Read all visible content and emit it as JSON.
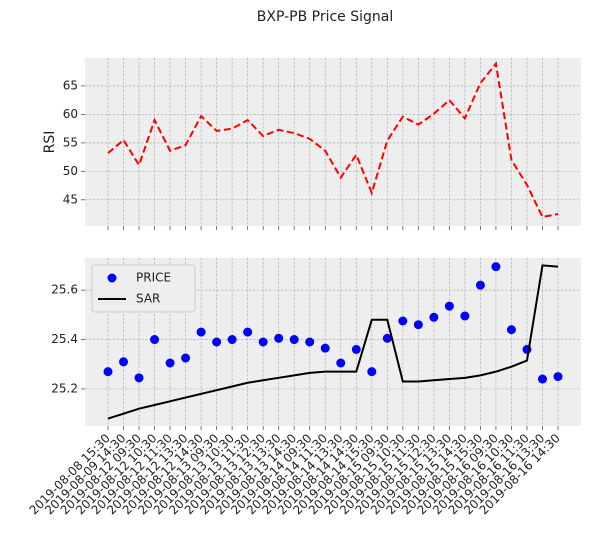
{
  "chart_data": [
    {
      "type": "line",
      "title": "BXP-PB Price Signal",
      "ylabel": "RSI",
      "series": [
        {
          "name": "RSI",
          "color": "#ff0000",
          "dashed": true,
          "values": [
            53.2,
            55.5,
            51.1,
            59.0,
            53.6,
            54.6,
            59.7,
            57.1,
            57.5,
            59.0,
            56.2,
            57.3,
            56.7,
            55.7,
            53.6,
            48.9,
            52.9,
            46.2,
            55.4,
            59.6,
            58.2,
            60.1,
            62.5,
            59.3,
            65.5,
            68.9,
            52.0,
            47.6,
            42.0,
            42.5
          ]
        }
      ],
      "ylim": [
        40.4,
        69.9
      ],
      "yticks": [
        45,
        50,
        55,
        60,
        65
      ],
      "grid": true,
      "legend": null
    },
    {
      "type": "line",
      "legend": "upper left",
      "grid": true,
      "categories": [
        "2019-08-08 15:30",
        "2019-08-09 14:30",
        "2019-08-12 09:30",
        "2019-08-12 10:30",
        "2019-08-12 11:30",
        "2019-08-12 13:30",
        "2019-08-12 14:30",
        "2019-08-13 09:30",
        "2019-08-13 10:30",
        "2019-08-13 11:30",
        "2019-08-13 12:30",
        "2019-08-13 13:30",
        "2019-08-13 14:30",
        "2019-08-14 09:30",
        "2019-08-14 11:30",
        "2019-08-14 13:30",
        "2019-08-14 14:30",
        "2019-08-14 15:30",
        "2019-08-15 09:30",
        "2019-08-15 10:30",
        "2019-08-15 11:30",
        "2019-08-15 12:30",
        "2019-08-15 13:30",
        "2019-08-15 14:30",
        "2019-08-15 15:30",
        "2019-08-16 09:30",
        "2019-08-16 10:30",
        "2019-08-16 11:30",
        "2019-08-16 13:30",
        "2019-08-16 14:30"
      ],
      "series": [
        {
          "name": "PRICE",
          "color": "#0000ff",
          "marker": "o",
          "values": [
            25.27,
            25.31,
            25.245,
            25.4,
            25.305,
            25.325,
            25.43,
            25.39,
            25.4,
            25.43,
            25.39,
            25.405,
            25.4,
            25.39,
            25.365,
            25.305,
            25.36,
            25.27,
            25.405,
            25.475,
            25.46,
            25.49,
            25.535,
            25.495,
            25.62,
            25.695,
            25.44,
            25.36,
            25.24,
            25.25
          ]
        },
        {
          "name": "SAR",
          "color": "#000000",
          "marker": null,
          "values": [
            25.08,
            25.1,
            25.12,
            25.135,
            25.15,
            25.165,
            25.18,
            25.195,
            25.21,
            25.225,
            25.235,
            25.245,
            25.255,
            25.265,
            25.27,
            25.27,
            25.27,
            25.48,
            25.48,
            25.23,
            25.23,
            25.235,
            25.24,
            25.245,
            25.255,
            25.27,
            25.29,
            25.315,
            25.7,
            25.695
          ]
        }
      ],
      "ylim": [
        25.05,
        25.73
      ],
      "yticks": [
        25.2,
        25.4,
        25.6
      ]
    }
  ]
}
